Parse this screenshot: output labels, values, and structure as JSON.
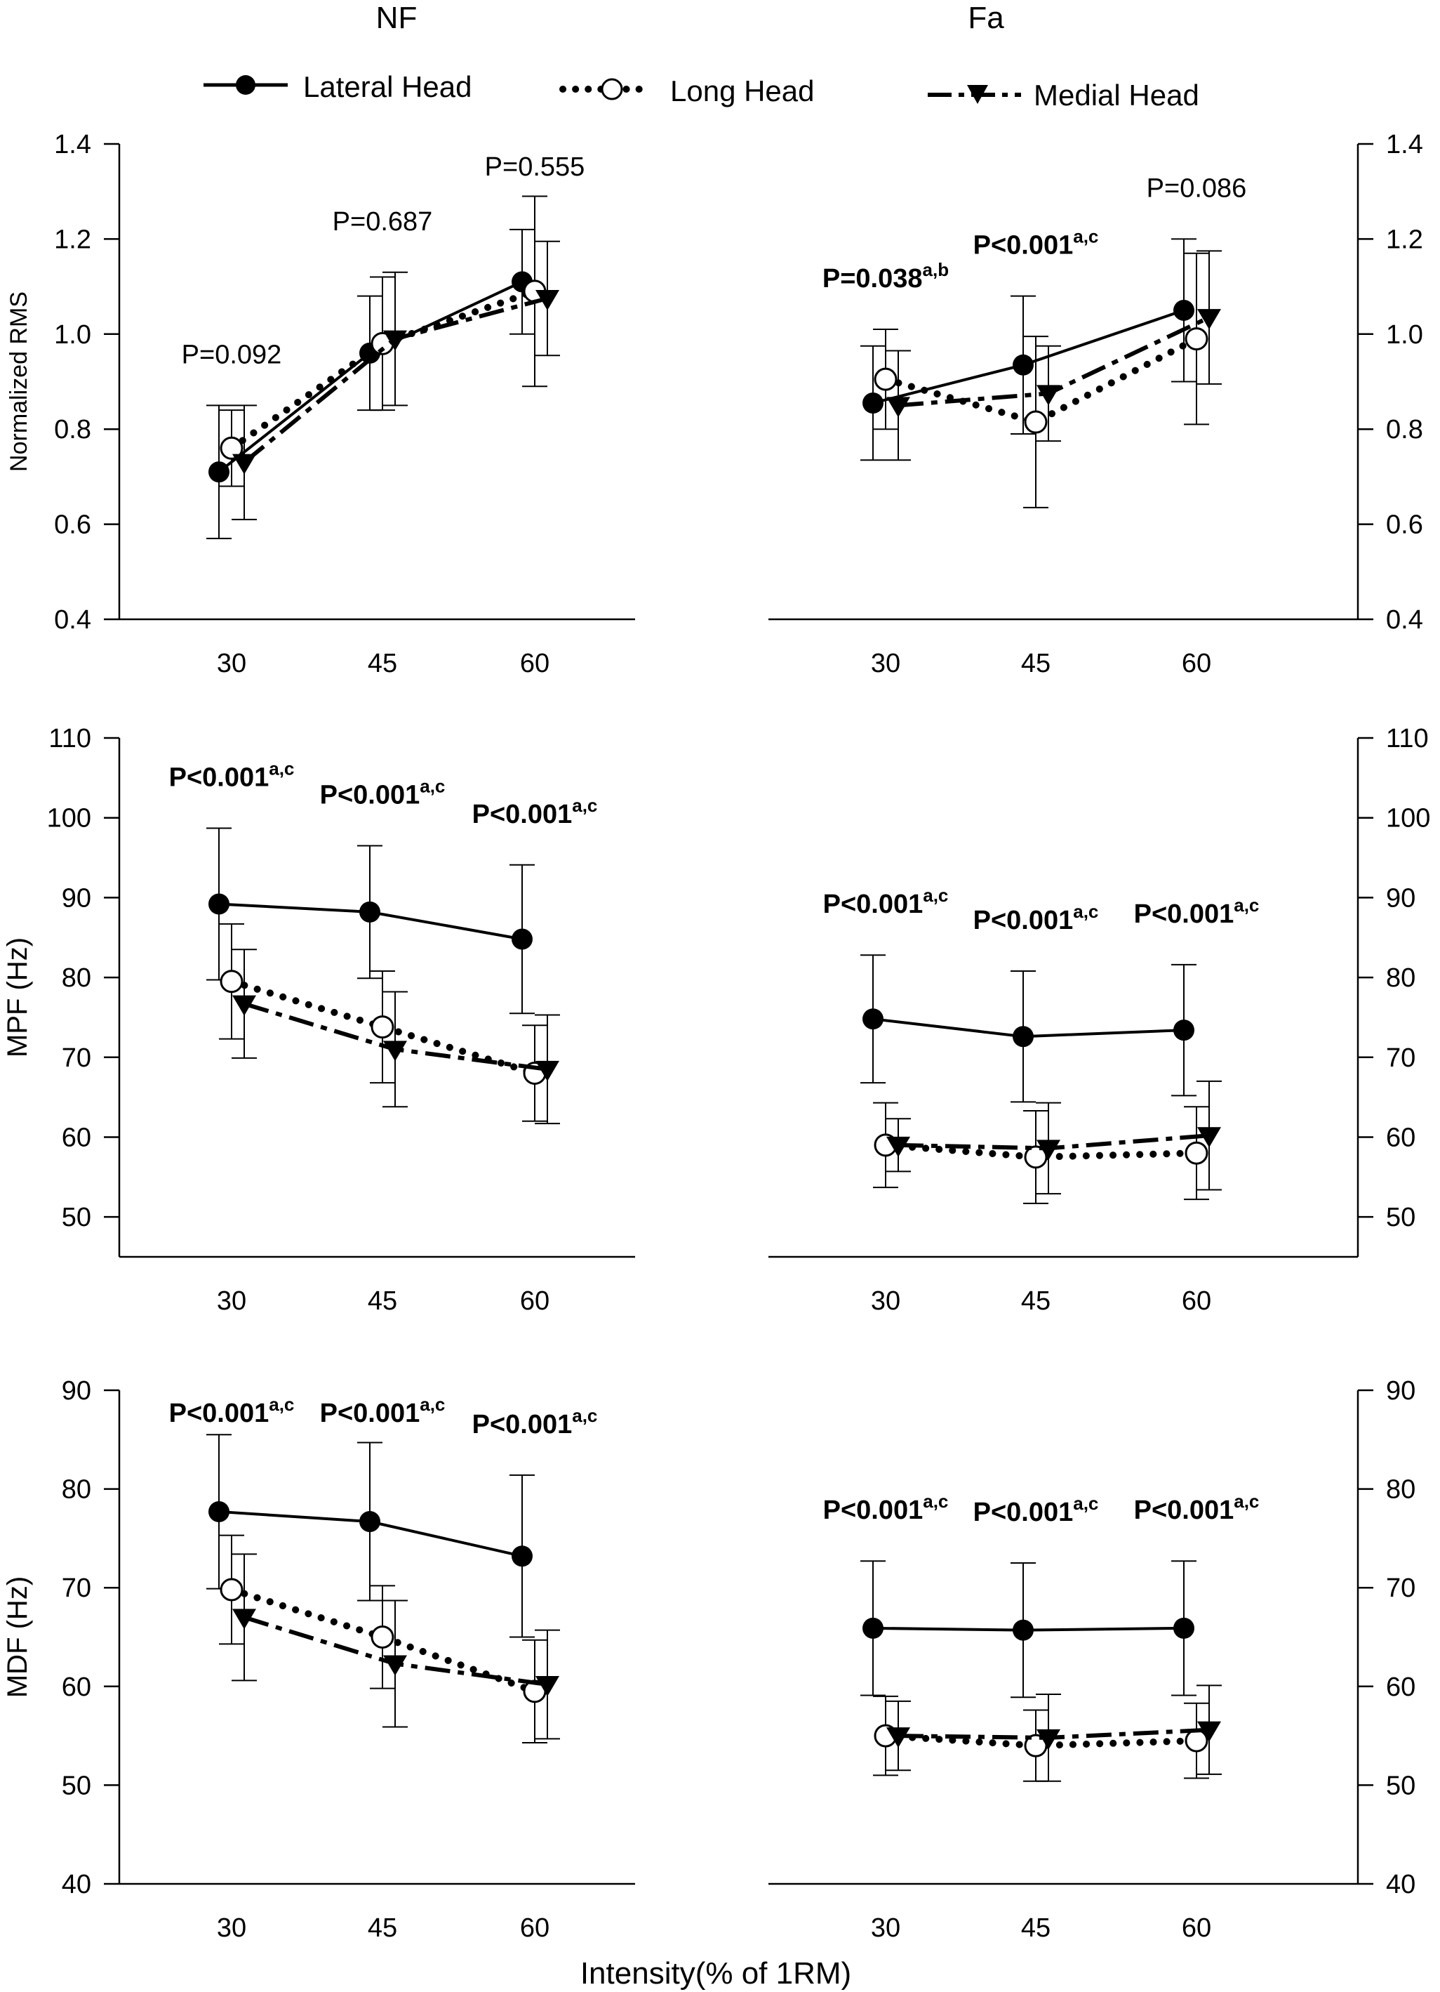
{
  "headings": {
    "left": "NF",
    "right": "Fa"
  },
  "legend": {
    "items": [
      {
        "label": "Lateral Head",
        "style": "solid",
        "marker": "filled-circle"
      },
      {
        "label": "Long Head",
        "style": "dotted",
        "marker": "open-circle"
      },
      {
        "label": "Medial Head",
        "style": "dashed",
        "marker": "filled-triangle-down"
      }
    ]
  },
  "x_axis_label": "Intensity(% of 1RM)",
  "chart_data": [
    {
      "type": "line",
      "panel": "NF",
      "row": "top",
      "ylabel": "Normalized RMS",
      "ylim": [
        0.4,
        1.4
      ],
      "yticks": [
        "0.4",
        "0.6",
        "0.8",
        "1.0",
        "1.2",
        "1.4"
      ],
      "categories": [
        "30",
        "45",
        "60"
      ],
      "x": [
        30,
        45,
        60
      ],
      "axis_side": "left",
      "series": [
        {
          "name": "Lateral Head",
          "values": [
            0.71,
            0.96,
            1.11
          ],
          "err": [
            0.14,
            0.12,
            0.11
          ]
        },
        {
          "name": "Long Head",
          "values": [
            0.76,
            0.98,
            1.09
          ],
          "err": [
            0.08,
            0.14,
            0.2
          ]
        },
        {
          "name": "Medial Head",
          "values": [
            0.73,
            0.99,
            1.075
          ],
          "err": [
            0.12,
            0.14,
            0.12
          ]
        }
      ],
      "annotations": [
        {
          "x": 30,
          "text": "P=0.092",
          "sup": "",
          "bold": false
        },
        {
          "x": 45,
          "text": "P=0.687",
          "sup": "",
          "bold": false
        },
        {
          "x": 60,
          "text": "P=0.555",
          "sup": "",
          "bold": false
        }
      ]
    },
    {
      "type": "line",
      "panel": "Fa",
      "row": "top",
      "ylabel": "",
      "ylim": [
        0.4,
        1.4
      ],
      "yticks": [
        "0.4",
        "0.6",
        "0.8",
        "1.0",
        "1.2",
        "1.4"
      ],
      "categories": [
        "30",
        "45",
        "60"
      ],
      "x": [
        30,
        45,
        60
      ],
      "axis_side": "right",
      "series": [
        {
          "name": "Lateral Head",
          "values": [
            0.855,
            0.935,
            1.05
          ],
          "err": [
            0.12,
            0.145,
            0.15
          ]
        },
        {
          "name": "Long Head",
          "values": [
            0.905,
            0.815,
            0.99
          ],
          "err": [
            0.105,
            0.18,
            0.18
          ]
        },
        {
          "name": "Medial Head",
          "values": [
            0.85,
            0.875,
            1.035
          ],
          "err": [
            0.115,
            0.1,
            0.14
          ]
        }
      ],
      "annotations": [
        {
          "x": 30,
          "text": "P=0.038",
          "sup": "a,b",
          "bold": true
        },
        {
          "x": 45,
          "text": "P<0.001",
          "sup": "a,c",
          "bold": true
        },
        {
          "x": 60,
          "text": "P=0.086",
          "sup": "",
          "bold": false
        }
      ]
    },
    {
      "type": "line",
      "panel": "NF",
      "row": "middle",
      "ylabel": "MPF (Hz)",
      "ylim": [
        45,
        110
      ],
      "yticks": [
        "50",
        "60",
        "70",
        "80",
        "90",
        "100",
        "110"
      ],
      "categories": [
        "30",
        "45",
        "60"
      ],
      "x": [
        30,
        45,
        60
      ],
      "axis_side": "left",
      "series": [
        {
          "name": "Lateral Head",
          "values": [
            89.2,
            88.2,
            84.8
          ],
          "err": [
            9.5,
            8.3,
            9.3
          ]
        },
        {
          "name": "Long Head",
          "values": [
            79.5,
            73.8,
            68.0
          ],
          "err": [
            7.2,
            7.0,
            6.0
          ]
        },
        {
          "name": "Medial Head",
          "values": [
            76.7,
            71.0,
            68.5
          ],
          "err": [
            6.8,
            7.2,
            6.8
          ]
        }
      ],
      "annotations": [
        {
          "x": 30,
          "text": "P<0.001",
          "sup": "a,c",
          "bold": true
        },
        {
          "x": 45,
          "text": "P<0.001",
          "sup": "a,c",
          "bold": true
        },
        {
          "x": 60,
          "text": "P<0.001",
          "sup": "a,c",
          "bold": true
        }
      ]
    },
    {
      "type": "line",
      "panel": "Fa",
      "row": "middle",
      "ylabel": "",
      "ylim": [
        45,
        110
      ],
      "yticks": [
        "50",
        "60",
        "70",
        "80",
        "90",
        "100",
        "110"
      ],
      "categories": [
        "30",
        "45",
        "60"
      ],
      "x": [
        30,
        45,
        60
      ],
      "axis_side": "right",
      "series": [
        {
          "name": "Lateral Head",
          "values": [
            74.8,
            72.6,
            73.4
          ],
          "err": [
            8.0,
            8.2,
            8.2
          ]
        },
        {
          "name": "Long Head",
          "values": [
            59.0,
            57.5,
            58.0
          ],
          "err": [
            5.3,
            5.8,
            5.8
          ]
        },
        {
          "name": "Medial Head",
          "values": [
            59.0,
            58.6,
            60.2
          ],
          "err": [
            3.3,
            5.7,
            6.8
          ]
        }
      ],
      "annotations": [
        {
          "x": 30,
          "text": "P<0.001",
          "sup": "a,c",
          "bold": true
        },
        {
          "x": 45,
          "text": "P<0.001",
          "sup": "a,c",
          "bold": true
        },
        {
          "x": 60,
          "text": "P<0.001",
          "sup": "a,c",
          "bold": true
        }
      ]
    },
    {
      "type": "line",
      "panel": "NF",
      "row": "bottom",
      "ylabel": "MDF (Hz)",
      "ylim": [
        40,
        90
      ],
      "yticks": [
        "40",
        "50",
        "60",
        "70",
        "80",
        "90"
      ],
      "categories": [
        "30",
        "45",
        "60"
      ],
      "x": [
        30,
        45,
        60
      ],
      "axis_side": "left",
      "series": [
        {
          "name": "Lateral Head",
          "values": [
            77.7,
            76.7,
            73.2
          ],
          "err": [
            7.8,
            8.0,
            8.2
          ]
        },
        {
          "name": "Long Head",
          "values": [
            69.8,
            65.0,
            59.5
          ],
          "err": [
            5.5,
            5.2,
            5.2
          ]
        },
        {
          "name": "Medial Head",
          "values": [
            67.0,
            62.3,
            60.2
          ],
          "err": [
            6.4,
            6.4,
            5.5
          ]
        }
      ],
      "annotations": [
        {
          "x": 30,
          "text": "P<0.001",
          "sup": "a,c",
          "bold": true
        },
        {
          "x": 45,
          "text": "P<0.001",
          "sup": "a,c",
          "bold": true
        },
        {
          "x": 60,
          "text": "P<0.001",
          "sup": "a,c",
          "bold": true
        }
      ]
    },
    {
      "type": "line",
      "panel": "Fa",
      "row": "bottom",
      "ylabel": "",
      "ylim": [
        40,
        90
      ],
      "yticks": [
        "40",
        "50",
        "60",
        "70",
        "80",
        "90"
      ],
      "categories": [
        "30",
        "45",
        "60"
      ],
      "x": [
        30,
        45,
        60
      ],
      "axis_side": "right",
      "series": [
        {
          "name": "Lateral Head",
          "values": [
            65.9,
            65.7,
            65.9
          ],
          "err": [
            6.8,
            6.8,
            6.8
          ]
        },
        {
          "name": "Long Head",
          "values": [
            55.0,
            54.0,
            54.5
          ],
          "err": [
            4.0,
            3.6,
            3.8
          ]
        },
        {
          "name": "Medial Head",
          "values": [
            55.0,
            54.8,
            55.6
          ],
          "err": [
            3.5,
            4.4,
            4.5
          ]
        }
      ],
      "annotations": [
        {
          "x": 30,
          "text": "P<0.001",
          "sup": "a,c",
          "bold": true
        },
        {
          "x": 45,
          "text": "P<0.001",
          "sup": "a,c",
          "bold": true
        },
        {
          "x": 60,
          "text": "P<0.001",
          "sup": "a,c",
          "bold": true
        }
      ]
    }
  ]
}
